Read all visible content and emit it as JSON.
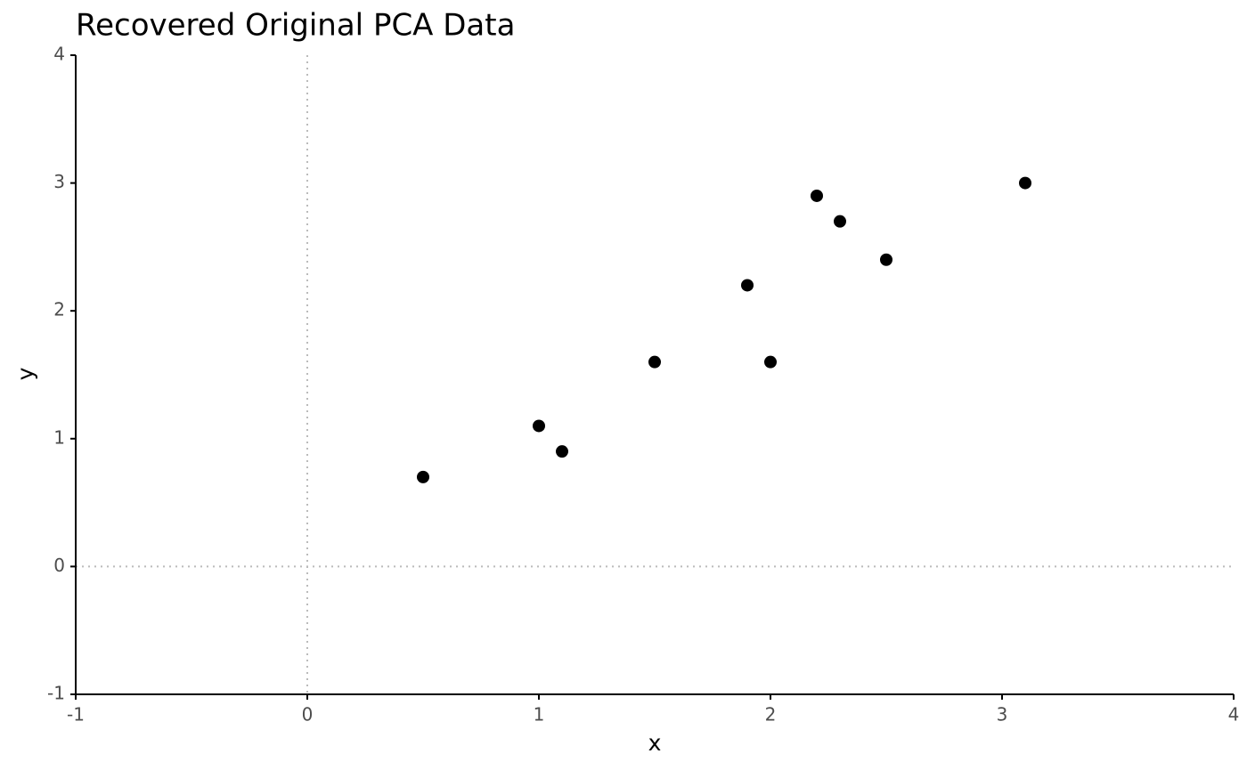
{
  "chart_data": {
    "type": "scatter",
    "title": "Recovered Original PCA Data",
    "x_label": "x",
    "y_label": "y",
    "series": [
      {
        "color": "#000000",
        "x": [
          0.5,
          1.0,
          1.1,
          1.5,
          1.9,
          2.0,
          2.2,
          2.3,
          2.5,
          3.1
        ],
        "values": [
          0.7,
          1.1,
          0.9,
          1.6,
          2.2,
          1.6,
          2.9,
          2.7,
          2.4,
          3.0
        ]
      }
    ],
    "xlim": [
      -1,
      4
    ],
    "ylim": [
      -1,
      4
    ],
    "xticks": [
      -1,
      0,
      1,
      2,
      3,
      4
    ],
    "yticks": [
      -1,
      0,
      1,
      2,
      3,
      4
    ],
    "hline": 0,
    "vline": 0,
    "grid": false
  }
}
